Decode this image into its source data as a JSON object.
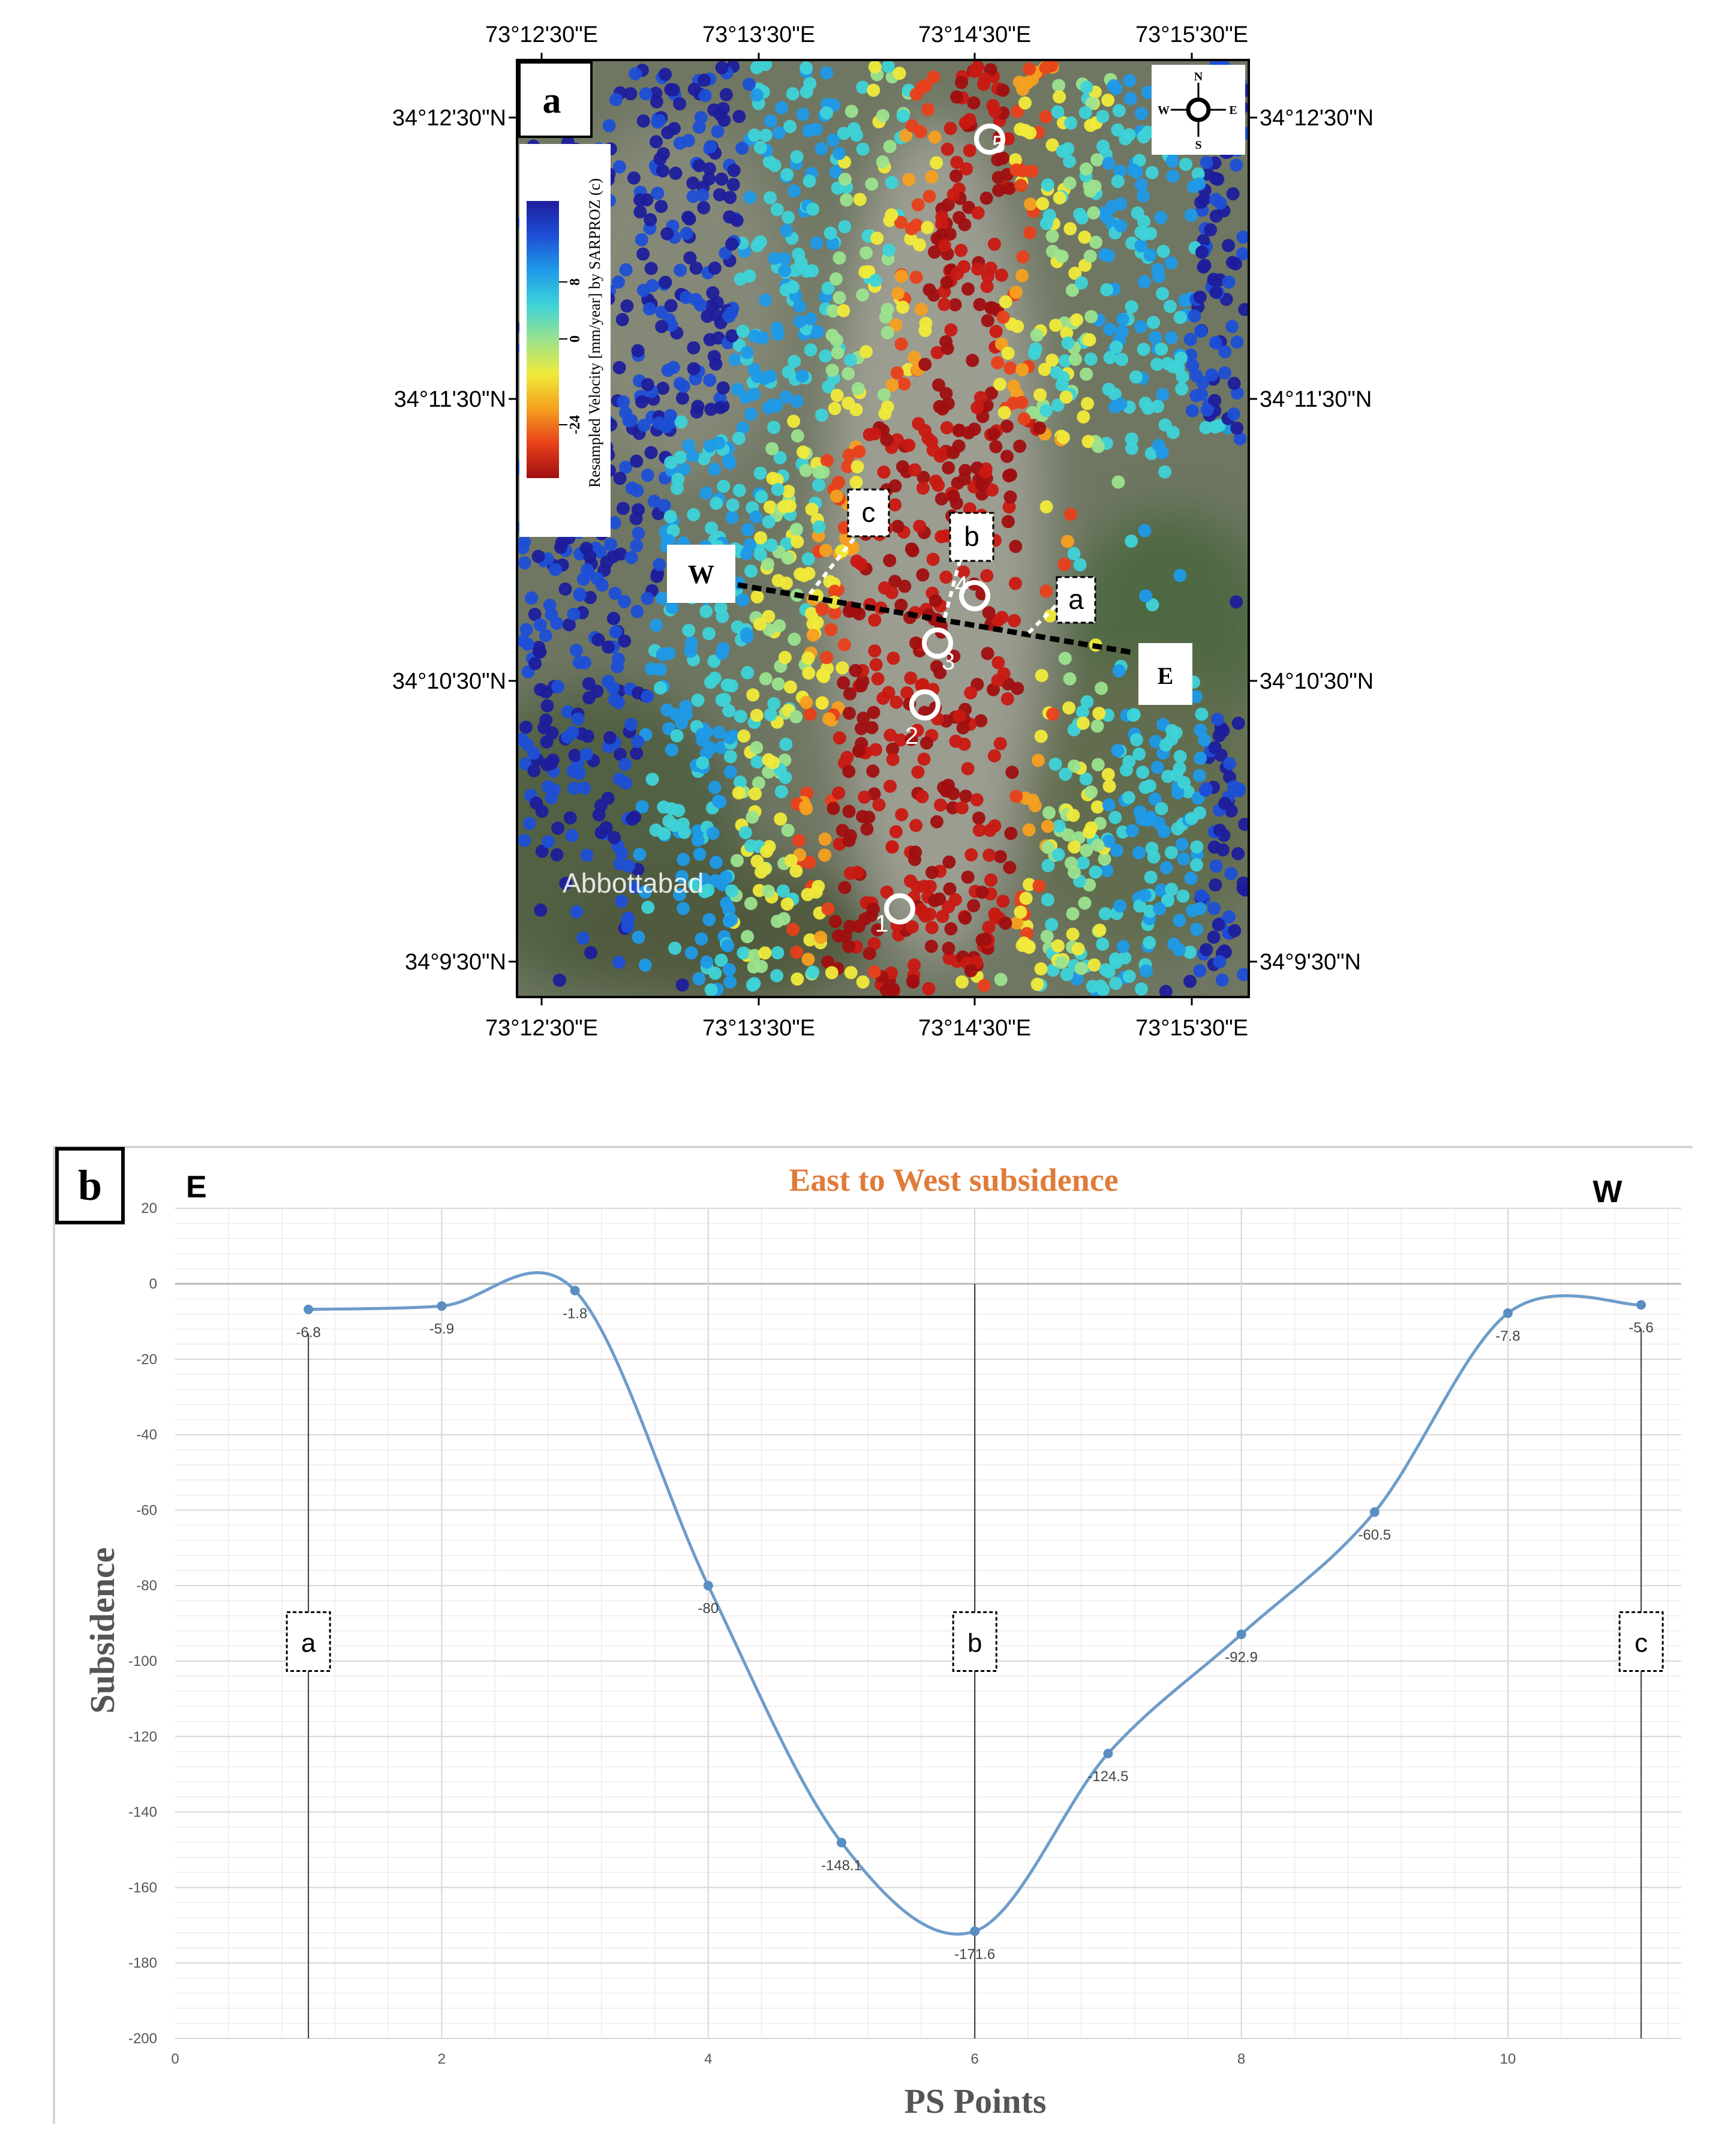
{
  "panel_a": {
    "label": "a",
    "lon_ticks": [
      "73°12'30\"E",
      "73°13'30\"E",
      "73°14'30\"E",
      "73°15'30\"E"
    ],
    "lat_ticks": [
      "34°12'30\"N",
      "34°11'30\"N",
      "34°10'30\"N",
      "34°9'30\"N"
    ],
    "colorbar": {
      "title": "Resampled Velocity [mm/year] by SARPROZ (c)",
      "ticks": [
        "8",
        "0",
        "-24"
      ],
      "colors": [
        "#1d1d9c",
        "#1e4fd6",
        "#1f9ae8",
        "#3ed3d8",
        "#9be38e",
        "#f0ea3a",
        "#f5a020",
        "#e8401a",
        "#a00f10"
      ]
    },
    "compass": {
      "n": "N",
      "s": "S",
      "e": "E",
      "w": "W"
    },
    "profile_labels": {
      "w": "W",
      "e": "E",
      "a": "a",
      "b": "b",
      "c": "c"
    },
    "markers": [
      "1",
      "2",
      "3",
      "4",
      "5"
    ],
    "place_label": "Abbottabad"
  },
  "panel_b": {
    "label": "b",
    "left_dir": "E",
    "right_dir": "W",
    "section_boxes": [
      "a",
      "b",
      "c"
    ]
  },
  "chart_data": {
    "type": "line",
    "title": "East to West subsidence",
    "xlabel": "PS Points",
    "ylabel": "Subsidence",
    "x": [
      1,
      2,
      3,
      4,
      5,
      6,
      7,
      8,
      9,
      10,
      11
    ],
    "values": [
      -6.8,
      -5.9,
      -1.8,
      -80,
      -148.1,
      -171.6,
      -124.5,
      -92.9,
      -60.5,
      -7.8,
      -5.6
    ],
    "data_labels": [
      "-6.8",
      "-5.9",
      "-1.8",
      "-80",
      "-148.1",
      "-171.6",
      "-124.5",
      "-92.9",
      "-60.5",
      "-7.8",
      "-5.6"
    ],
    "xlim": [
      0,
      11.3
    ],
    "ylim": [
      -200,
      20
    ],
    "xticks": [
      0,
      2,
      4,
      6,
      8,
      10
    ],
    "yticks": [
      20,
      0,
      -20,
      -40,
      -60,
      -80,
      -100,
      -120,
      -140,
      -160,
      -180,
      -200
    ],
    "grid": true,
    "line_color": "#6d9cc9"
  }
}
